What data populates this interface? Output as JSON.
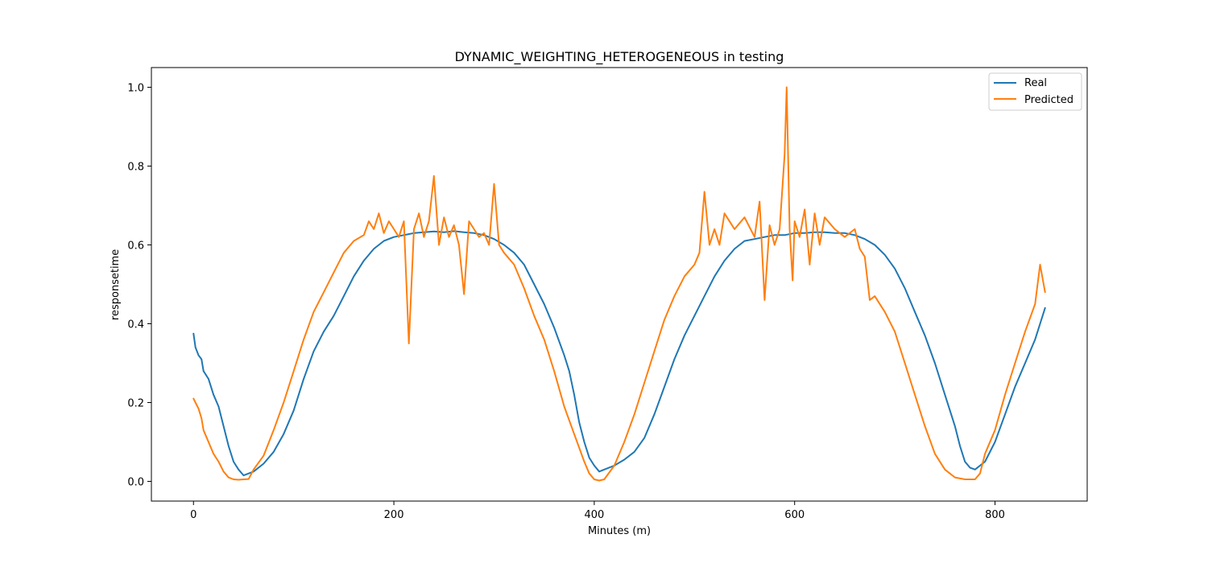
{
  "chart_data": {
    "type": "line",
    "title": "DYNAMIC_WEIGHTING_HETEROGENEOUS in testing",
    "xlabel": "Minutes (m)",
    "ylabel": "responsetime",
    "xlim": [
      -42,
      892
    ],
    "ylim": [
      -0.05,
      1.05
    ],
    "xticks": [
      0,
      200,
      400,
      600,
      800
    ],
    "yticks": [
      0.0,
      0.2,
      0.4,
      0.6,
      0.8,
      1.0
    ],
    "xtick_labels": [
      "0",
      "200",
      "400",
      "600",
      "800"
    ],
    "ytick_labels": [
      "0.0",
      "0.2",
      "0.4",
      "0.6",
      "0.8",
      "1.0"
    ],
    "grid": false,
    "legend_position": "top-right",
    "series": [
      {
        "name": "Real",
        "color": "#1f77b4",
        "points": [
          [
            0,
            0.375
          ],
          [
            2,
            0.34
          ],
          [
            5,
            0.32
          ],
          [
            8,
            0.31
          ],
          [
            10,
            0.28
          ],
          [
            15,
            0.26
          ],
          [
            20,
            0.22
          ],
          [
            25,
            0.19
          ],
          [
            30,
            0.14
          ],
          [
            35,
            0.09
          ],
          [
            40,
            0.05
          ],
          [
            45,
            0.03
          ],
          [
            50,
            0.015
          ],
          [
            55,
            0.02
          ],
          [
            60,
            0.025
          ],
          [
            70,
            0.045
          ],
          [
            80,
            0.075
          ],
          [
            90,
            0.12
          ],
          [
            100,
            0.18
          ],
          [
            110,
            0.26
          ],
          [
            120,
            0.33
          ],
          [
            130,
            0.38
          ],
          [
            140,
            0.42
          ],
          [
            150,
            0.47
          ],
          [
            160,
            0.52
          ],
          [
            170,
            0.56
          ],
          [
            180,
            0.59
          ],
          [
            190,
            0.61
          ],
          [
            200,
            0.62
          ],
          [
            210,
            0.625
          ],
          [
            220,
            0.63
          ],
          [
            230,
            0.632
          ],
          [
            240,
            0.634
          ],
          [
            250,
            0.632
          ],
          [
            260,
            0.635
          ],
          [
            270,
            0.632
          ],
          [
            280,
            0.63
          ],
          [
            290,
            0.625
          ],
          [
            300,
            0.615
          ],
          [
            310,
            0.6
          ],
          [
            320,
            0.58
          ],
          [
            330,
            0.55
          ],
          [
            340,
            0.5
          ],
          [
            350,
            0.45
          ],
          [
            360,
            0.39
          ],
          [
            370,
            0.32
          ],
          [
            375,
            0.28
          ],
          [
            380,
            0.22
          ],
          [
            385,
            0.15
          ],
          [
            390,
            0.1
          ],
          [
            395,
            0.06
          ],
          [
            400,
            0.04
          ],
          [
            405,
            0.025
          ],
          [
            410,
            0.03
          ],
          [
            420,
            0.04
          ],
          [
            430,
            0.055
          ],
          [
            440,
            0.075
          ],
          [
            450,
            0.11
          ],
          [
            460,
            0.17
          ],
          [
            470,
            0.24
          ],
          [
            480,
            0.31
          ],
          [
            490,
            0.37
          ],
          [
            500,
            0.42
          ],
          [
            510,
            0.47
          ],
          [
            520,
            0.52
          ],
          [
            530,
            0.56
          ],
          [
            540,
            0.59
          ],
          [
            550,
            0.61
          ],
          [
            560,
            0.615
          ],
          [
            570,
            0.62
          ],
          [
            580,
            0.625
          ],
          [
            590,
            0.625
          ],
          [
            600,
            0.63
          ],
          [
            610,
            0.63
          ],
          [
            620,
            0.632
          ],
          [
            630,
            0.632
          ],
          [
            640,
            0.63
          ],
          [
            650,
            0.63
          ],
          [
            660,
            0.625
          ],
          [
            670,
            0.615
          ],
          [
            680,
            0.6
          ],
          [
            690,
            0.575
          ],
          [
            700,
            0.54
          ],
          [
            710,
            0.49
          ],
          [
            720,
            0.43
          ],
          [
            730,
            0.37
          ],
          [
            740,
            0.3
          ],
          [
            750,
            0.22
          ],
          [
            760,
            0.14
          ],
          [
            765,
            0.09
          ],
          [
            770,
            0.05
          ],
          [
            775,
            0.035
          ],
          [
            780,
            0.03
          ],
          [
            790,
            0.05
          ],
          [
            800,
            0.1
          ],
          [
            810,
            0.17
          ],
          [
            820,
            0.24
          ],
          [
            830,
            0.3
          ],
          [
            840,
            0.36
          ],
          [
            845,
            0.4
          ],
          [
            850,
            0.44
          ]
        ]
      },
      {
        "name": "Predicted",
        "color": "#ff7f0e",
        "points": [
          [
            0,
            0.21
          ],
          [
            2,
            0.2
          ],
          [
            5,
            0.185
          ],
          [
            8,
            0.16
          ],
          [
            10,
            0.13
          ],
          [
            15,
            0.1
          ],
          [
            20,
            0.07
          ],
          [
            25,
            0.05
          ],
          [
            30,
            0.025
          ],
          [
            35,
            0.01
          ],
          [
            40,
            0.005
          ],
          [
            45,
            0.004
          ],
          [
            50,
            0.005
          ],
          [
            55,
            0.006
          ],
          [
            60,
            0.03
          ],
          [
            70,
            0.065
          ],
          [
            80,
            0.13
          ],
          [
            90,
            0.2
          ],
          [
            100,
            0.28
          ],
          [
            110,
            0.36
          ],
          [
            120,
            0.43
          ],
          [
            130,
            0.48
          ],
          [
            140,
            0.53
          ],
          [
            150,
            0.58
          ],
          [
            160,
            0.61
          ],
          [
            170,
            0.625
          ],
          [
            175,
            0.66
          ],
          [
            180,
            0.64
          ],
          [
            185,
            0.68
          ],
          [
            190,
            0.63
          ],
          [
            195,
            0.66
          ],
          [
            200,
            0.64
          ],
          [
            205,
            0.62
          ],
          [
            210,
            0.66
          ],
          [
            215,
            0.35
          ],
          [
            220,
            0.64
          ],
          [
            225,
            0.68
          ],
          [
            230,
            0.62
          ],
          [
            235,
            0.66
          ],
          [
            240,
            0.775
          ],
          [
            245,
            0.6
          ],
          [
            250,
            0.67
          ],
          [
            255,
            0.62
          ],
          [
            260,
            0.65
          ],
          [
            265,
            0.6
          ],
          [
            270,
            0.475
          ],
          [
            275,
            0.66
          ],
          [
            280,
            0.64
          ],
          [
            285,
            0.62
          ],
          [
            290,
            0.63
          ],
          [
            295,
            0.6
          ],
          [
            300,
            0.755
          ],
          [
            305,
            0.6
          ],
          [
            310,
            0.58
          ],
          [
            320,
            0.55
          ],
          [
            330,
            0.49
          ],
          [
            340,
            0.42
          ],
          [
            350,
            0.36
          ],
          [
            360,
            0.28
          ],
          [
            370,
            0.19
          ],
          [
            380,
            0.12
          ],
          [
            390,
            0.05
          ],
          [
            395,
            0.02
          ],
          [
            400,
            0.005
          ],
          [
            405,
            0.002
          ],
          [
            410,
            0.005
          ],
          [
            420,
            0.04
          ],
          [
            430,
            0.1
          ],
          [
            440,
            0.17
          ],
          [
            450,
            0.25
          ],
          [
            460,
            0.33
          ],
          [
            470,
            0.41
          ],
          [
            480,
            0.47
          ],
          [
            490,
            0.52
          ],
          [
            500,
            0.55
          ],
          [
            505,
            0.58
          ],
          [
            510,
            0.735
          ],
          [
            515,
            0.6
          ],
          [
            520,
            0.64
          ],
          [
            525,
            0.6
          ],
          [
            530,
            0.68
          ],
          [
            540,
            0.64
          ],
          [
            550,
            0.67
          ],
          [
            560,
            0.62
          ],
          [
            565,
            0.71
          ],
          [
            570,
            0.46
          ],
          [
            575,
            0.65
          ],
          [
            580,
            0.6
          ],
          [
            585,
            0.64
          ],
          [
            590,
            0.83
          ],
          [
            592,
            1.0
          ],
          [
            595,
            0.64
          ],
          [
            598,
            0.51
          ],
          [
            600,
            0.66
          ],
          [
            605,
            0.62
          ],
          [
            610,
            0.69
          ],
          [
            615,
            0.55
          ],
          [
            620,
            0.68
          ],
          [
            625,
            0.6
          ],
          [
            630,
            0.67
          ],
          [
            640,
            0.64
          ],
          [
            650,
            0.62
          ],
          [
            660,
            0.64
          ],
          [
            665,
            0.59
          ],
          [
            670,
            0.57
          ],
          [
            675,
            0.46
          ],
          [
            680,
            0.47
          ],
          [
            690,
            0.43
          ],
          [
            700,
            0.38
          ],
          [
            710,
            0.3
          ],
          [
            720,
            0.22
          ],
          [
            730,
            0.14
          ],
          [
            740,
            0.07
          ],
          [
            750,
            0.03
          ],
          [
            760,
            0.01
          ],
          [
            770,
            0.005
          ],
          [
            780,
            0.005
          ],
          [
            785,
            0.02
          ],
          [
            790,
            0.07
          ],
          [
            800,
            0.13
          ],
          [
            810,
            0.22
          ],
          [
            820,
            0.3
          ],
          [
            830,
            0.38
          ],
          [
            840,
            0.45
          ],
          [
            845,
            0.55
          ],
          [
            850,
            0.48
          ]
        ]
      }
    ]
  }
}
